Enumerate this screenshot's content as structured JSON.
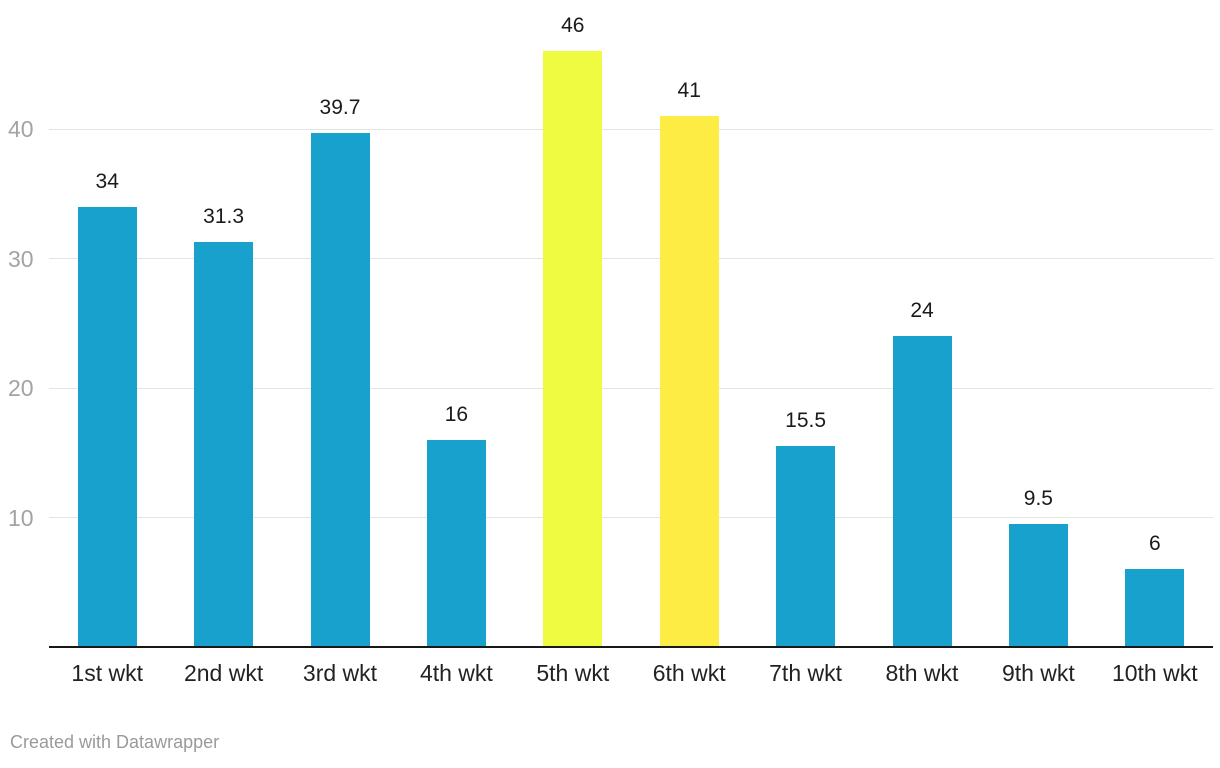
{
  "chart_data": {
    "type": "bar",
    "title": "",
    "xlabel": "",
    "ylabel": "",
    "categories": [
      "1st wkt",
      "2nd wkt",
      "3rd wkt",
      "4th wkt",
      "5th wkt",
      "6th wkt",
      "7th wkt",
      "8th wkt",
      "9th wkt",
      "10th wkt"
    ],
    "values": [
      34,
      31.3,
      39.7,
      16,
      46,
      41,
      15.5,
      24,
      9.5,
      6
    ],
    "value_labels": [
      "34",
      "31.3",
      "39.7",
      "16",
      "46",
      "41",
      "15.5",
      "24",
      "9.5",
      "6"
    ],
    "y_ticks": [
      10,
      20,
      30,
      40
    ],
    "ylim": [
      0,
      47
    ],
    "grid": "horizontal",
    "legend": "none",
    "bar_default_color": "#18a1cd",
    "highlights": [
      {
        "index": 4,
        "color": "#eefb41"
      },
      {
        "index": 5,
        "color": "#fdec44"
      }
    ],
    "grid_color": "#e4e4e4",
    "baseline_color": "#181818",
    "y_tick_label_color": "#a3a3a3",
    "x_label_color": "#222222",
    "value_label_color": "#1a1a1a"
  },
  "footer": {
    "attribution": "Created with Datawrapper"
  }
}
